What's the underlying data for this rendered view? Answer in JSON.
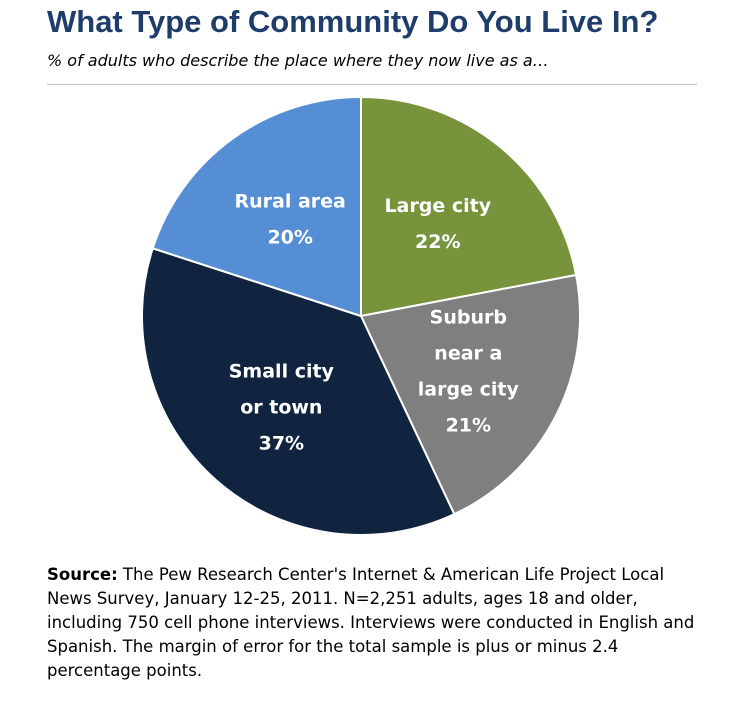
{
  "title": "What Type of Community Do You Live In?",
  "subtitle": "% of adults who describe the place where they now live as a…",
  "chart_data": {
    "type": "pie",
    "slices": [
      {
        "label_lines": [
          "Large city"
        ],
        "value": 22,
        "value_label": "22%",
        "color": "#77933c",
        "text_color": "#ffffff"
      },
      {
        "label_lines": [
          "Suburb",
          "near a",
          "large city"
        ],
        "value": 21,
        "value_label": "21%",
        "color": "#7f7f7f",
        "text_color": "#ffffff"
      },
      {
        "label_lines": [
          "Small city",
          "or town"
        ],
        "value": 37,
        "value_label": "37%",
        "color": "#10243f",
        "text_color": "#ffffff"
      },
      {
        "label_lines": [
          "Rural area"
        ],
        "value": 20,
        "value_label": "20%",
        "color": "#558ed5",
        "text_color": "#ffffff"
      }
    ],
    "start": "12 o'clock",
    "direction": "clockwise",
    "slice_border_color": "#ffffff"
  },
  "source": {
    "label": "Source:",
    "text": " The Pew Research Center's Internet & American Life Project Local News Survey, January 12-25, 2011. N=2,251 adults, ages 18 and older, including 750 cell phone interviews. Interviews were conducted in English and Spanish. The margin of error for the total sample is plus or minus 2.4 percentage points."
  }
}
